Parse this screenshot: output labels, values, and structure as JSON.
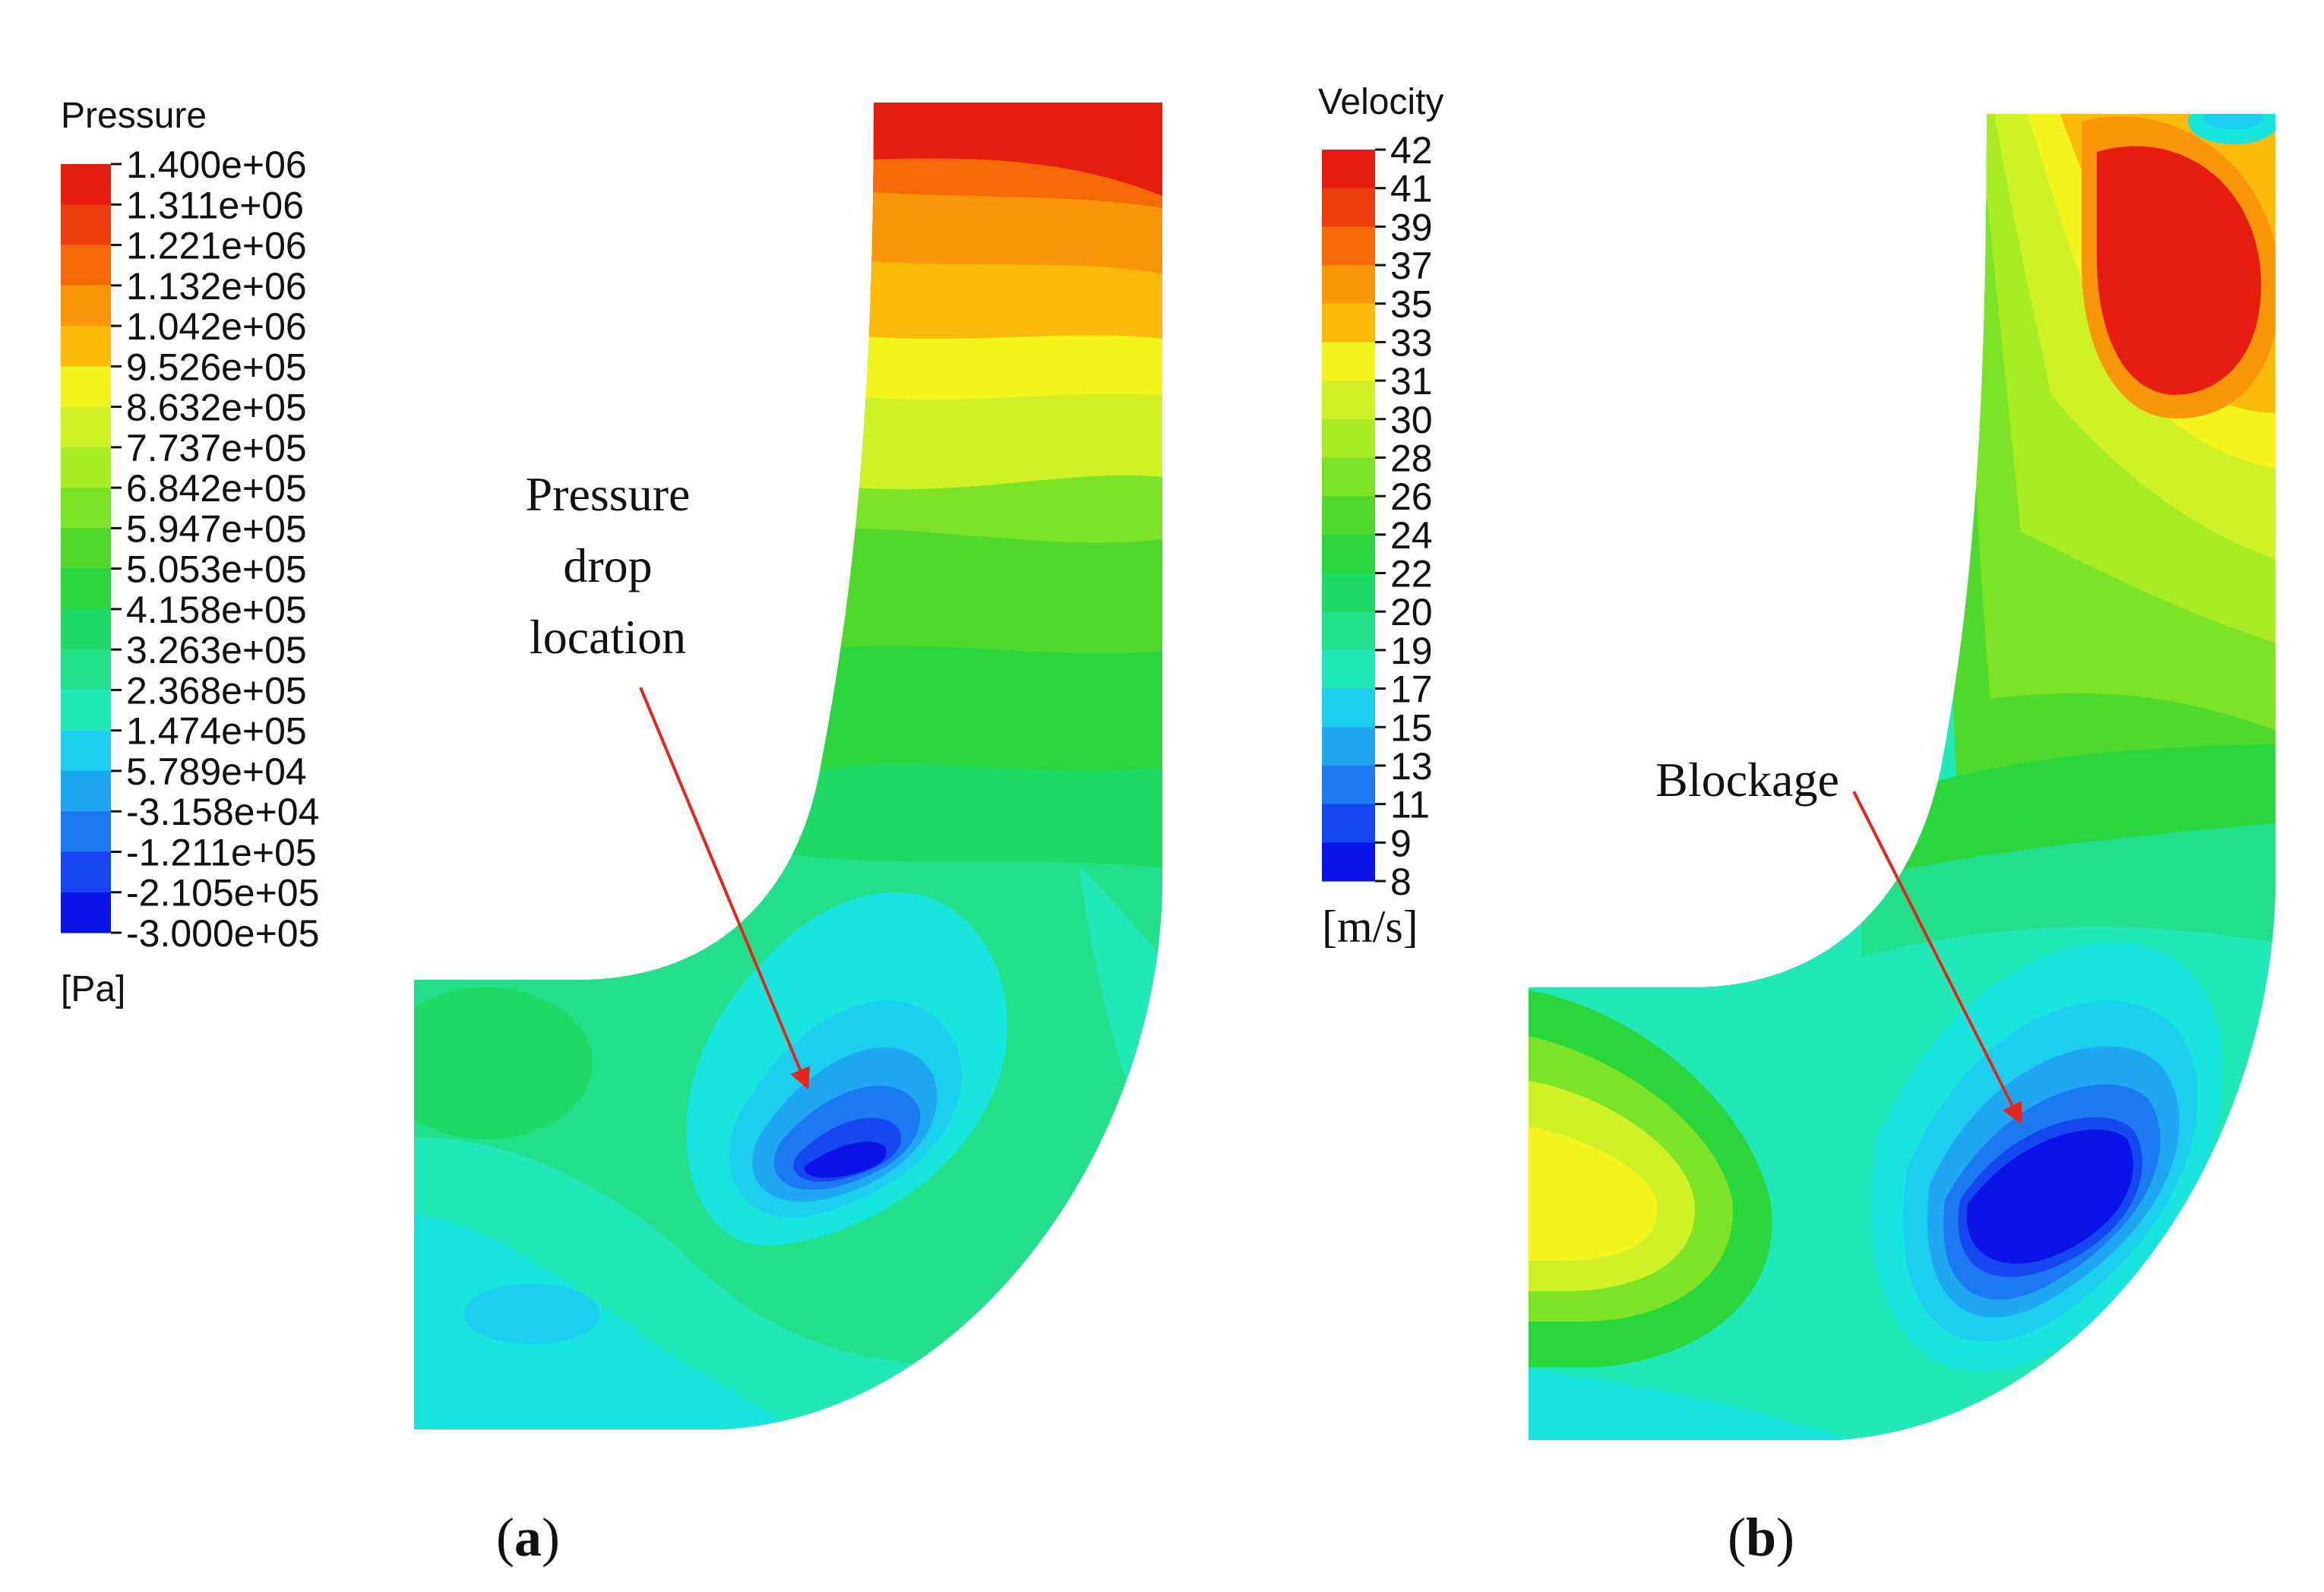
{
  "colors": {
    "scale": [
      "#0a14e6",
      "#1547f0",
      "#1b7af2",
      "#1fa8f2",
      "#1ccfee",
      "#18e6de",
      "#20e8b6",
      "#22e08a",
      "#1ed964",
      "#2ad63c",
      "#4fd92c",
      "#7ce326",
      "#a8ec24",
      "#cff226",
      "#f4f51c",
      "#f9d80f",
      "#fbb90b",
      "#f99609",
      "#f56a07",
      "#ee3d0c",
      "#e61c0e"
    ],
    "arrow": "#e8251b"
  },
  "panel_a": {
    "legend": {
      "title": "Pressure",
      "unit": "[Pa]",
      "labels": [
        "1.400e+06",
        "1.311e+06",
        "1.221e+06",
        "1.132e+06",
        "1.042e+06",
        "9.526e+05",
        "8.632e+05",
        "7.737e+05",
        "6.842e+05",
        "5.947e+05",
        "5.053e+05",
        "4.158e+05",
        "3.263e+05",
        "2.368e+05",
        "1.474e+05",
        "5.789e+04",
        "-3.158e+04",
        "-1.211e+05",
        "-2.105e+05",
        "-3.000e+05"
      ]
    },
    "annotation": {
      "lines": [
        "Pressure",
        "drop",
        "location"
      ]
    },
    "caption_letter": "a"
  },
  "panel_b": {
    "legend": {
      "title": "Velocity",
      "unit": "[m/s]",
      "labels": [
        "42",
        "41",
        "39",
        "37",
        "35",
        "33",
        "31",
        "30",
        "28",
        "26",
        "24",
        "22",
        "20",
        "19",
        "17",
        "15",
        "13",
        "11",
        "9",
        "8"
      ]
    },
    "annotation": {
      "lines": [
        "Blockage"
      ]
    },
    "caption_letter": "b"
  }
}
